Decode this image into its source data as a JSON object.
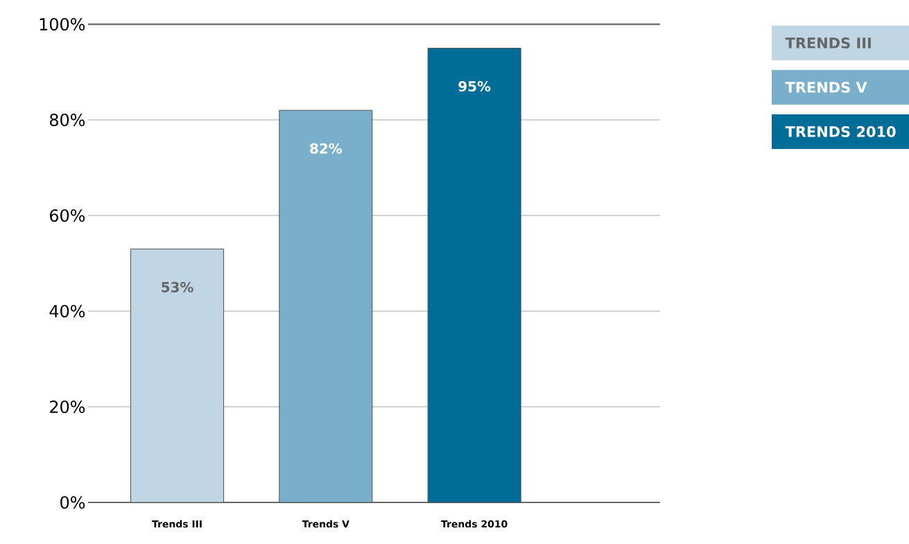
{
  "chart_data": {
    "type": "bar",
    "categories": [
      "Trends III",
      "Trends V",
      "Trends 2010"
    ],
    "series": [
      {
        "name": "TRENDS III",
        "color": "#c0d6e4",
        "values": [
          53,
          null,
          null
        ],
        "value_labels": [
          "53%",
          null,
          null
        ]
      },
      {
        "name": "TRENDS V",
        "color": "#7aafcb",
        "values": [
          null,
          82,
          null
        ],
        "value_labels": [
          null,
          "82%",
          null
        ]
      },
      {
        "name": "TRENDS 2010",
        "color": "#006c98",
        "values": [
          null,
          null,
          95
        ],
        "value_labels": [
          null,
          null,
          "95%"
        ]
      }
    ],
    "ylim": [
      0,
      100
    ],
    "yticks": [
      {
        "value": 0,
        "label": "0%"
      },
      {
        "value": 20,
        "label": "20%"
      },
      {
        "value": 40,
        "label": "40%"
      },
      {
        "value": 60,
        "label": "60%"
      },
      {
        "value": 80,
        "label": "80%"
      },
      {
        "value": 100,
        "label": "100%"
      }
    ],
    "grid": "y",
    "legend": "right"
  }
}
